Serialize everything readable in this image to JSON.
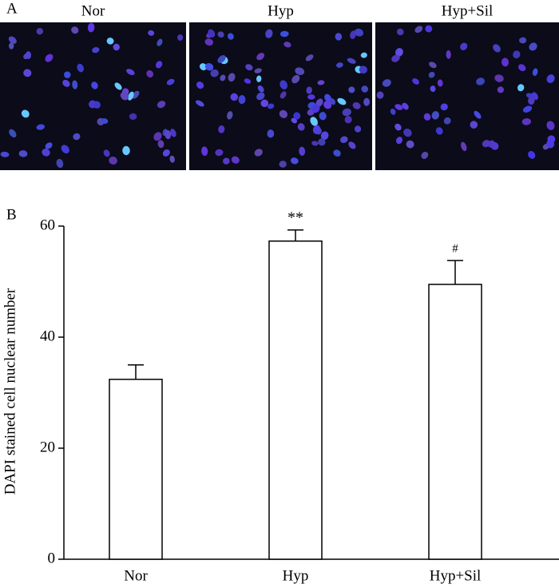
{
  "panel_a": {
    "label": "A",
    "images": [
      "Nor",
      "Hyp",
      "Hyp+Sil"
    ]
  },
  "panel_b": {
    "label": "B"
  },
  "chart_data": {
    "type": "bar",
    "ylabel": "DAPI stained cell nuclear number",
    "categories": [
      "Nor",
      "Hyp",
      "Hyp+Sil"
    ],
    "values": [
      32.4,
      57.3,
      49.5
    ],
    "errors": [
      2.6,
      2.0,
      4.3
    ],
    "annotations": [
      null,
      "**",
      "#"
    ],
    "color": "#ffffff",
    "ylim": [
      0,
      60
    ],
    "yticks": [
      0,
      20,
      40,
      60
    ],
    "grid": false
  }
}
